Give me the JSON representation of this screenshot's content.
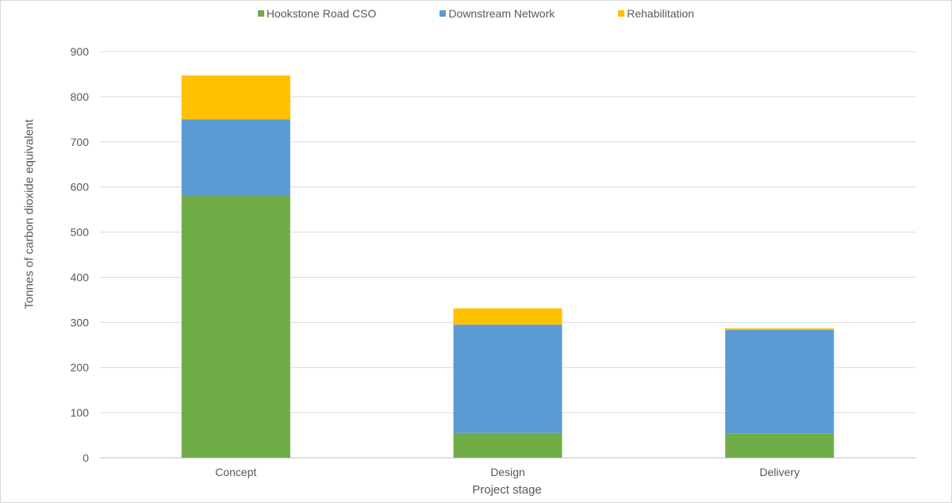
{
  "chart_data": {
    "type": "bar",
    "stacked": true,
    "categories": [
      "Concept",
      "Design",
      "Delivery"
    ],
    "series": [
      {
        "name": "Hookstone Road CSO",
        "color": "#70ad47",
        "values": [
          580,
          55,
          54
        ]
      },
      {
        "name": "Downstream Network",
        "color": "#5b9bd5",
        "values": [
          170,
          240,
          229
        ]
      },
      {
        "name": "Rehabilitation",
        "color": "#ffc000",
        "values": [
          97,
          36,
          4
        ]
      }
    ],
    "xlabel": "Project stage",
    "ylabel": "Tonnes of carbon dioxide equivalent",
    "ylim": [
      0,
      900
    ],
    "yticks": [
      0,
      100,
      200,
      300,
      400,
      500,
      600,
      700,
      800,
      900
    ],
    "grid": true,
    "legend": "top"
  }
}
